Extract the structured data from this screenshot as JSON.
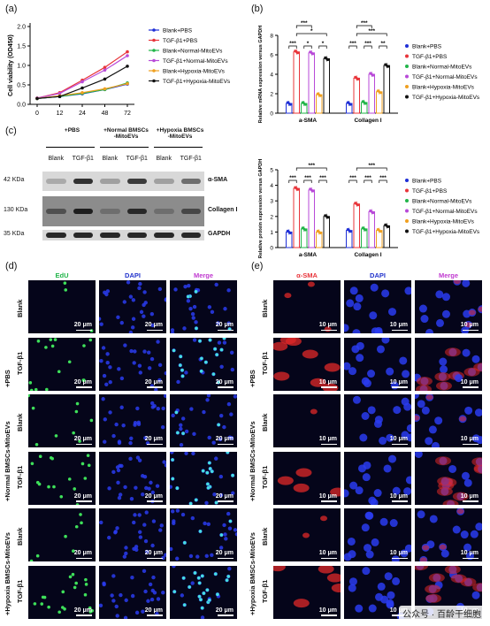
{
  "panels": {
    "a": "(a)",
    "b": "(b)",
    "c": "(c)",
    "d": "(d)",
    "e": "(e)"
  },
  "colors": {
    "Blank+PBS": "#1f2fd6",
    "TGF-β1+PBS": "#e8343a",
    "Blank+Normal-MitoEVs": "#22b54a",
    "TGF-β1+Normal-MitoEVs": "#b84ad8",
    "Blank+Hypoxia-MitoEVs": "#f0a020",
    "TGF-β1+Hypoxia-MitoEVs": "#111111"
  },
  "chart_data": [
    {
      "type": "line",
      "title": "",
      "xlabel": "",
      "ylabel": "Cell viability (OD450)",
      "x": [
        "0",
        "12",
        "24",
        "48",
        "72"
      ],
      "yticks": [
        "0.0",
        "0.5",
        "1.0",
        "1.5",
        "2.0"
      ],
      "ylim": [
        0,
        2.0
      ],
      "legend_position": "right",
      "series": [
        {
          "name": "Blank+PBS",
          "values": [
            0.15,
            0.2,
            0.27,
            0.38,
            0.52
          ]
        },
        {
          "name": "TGF-β1+PBS",
          "values": [
            0.16,
            0.3,
            0.62,
            0.95,
            1.35
          ]
        },
        {
          "name": "Blank+Normal-MitoEVs",
          "values": [
            0.15,
            0.2,
            0.28,
            0.38,
            0.55
          ]
        },
        {
          "name": "TGF-β1+Normal-MitoEVs",
          "values": [
            0.16,
            0.28,
            0.58,
            0.88,
            1.25
          ]
        },
        {
          "name": "Blank+Hypoxia-MitoEVs",
          "values": [
            0.15,
            0.22,
            0.3,
            0.4,
            0.53
          ]
        },
        {
          "name": "TGF-β1+Hypoxia-MitoEVs",
          "values": [
            0.15,
            0.2,
            0.42,
            0.65,
            0.98
          ]
        }
      ]
    },
    {
      "type": "bar",
      "title": "",
      "ylabel": "Relative mRNA expression versus GAPDH",
      "categories": [
        "a-SMA",
        "Collagen I"
      ],
      "yticks": [
        "0",
        "2",
        "4",
        "6",
        "8"
      ],
      "ylim": [
        0,
        8
      ],
      "legend_position": "right",
      "significance": [
        "***",
        "*",
        "*",
        "***",
        "***",
        "**",
        "*",
        "***",
        "***",
        "***"
      ],
      "series": [
        {
          "name": "Blank+PBS",
          "values": [
            1.0,
            1.0
          ]
        },
        {
          "name": "TGF-β1+PBS",
          "values": [
            6.3,
            3.6
          ]
        },
        {
          "name": "Blank+Normal-MitoEVs",
          "values": [
            1.0,
            1.1
          ]
        },
        {
          "name": "TGF-β1+Normal-MitoEVs",
          "values": [
            6.2,
            4.0
          ]
        },
        {
          "name": "Blank+Hypoxia-MitoEVs",
          "values": [
            1.9,
            2.2
          ]
        },
        {
          "name": "TGF-β1+Hypoxia-MitoEVs",
          "values": [
            5.6,
            4.9
          ]
        }
      ]
    },
    {
      "type": "bar",
      "title": "",
      "ylabel": "Relative protein expression versus GAPDH",
      "categories": [
        "a-SMA",
        "Collagen I"
      ],
      "yticks": [
        "0",
        "1",
        "2",
        "3",
        "4",
        "5"
      ],
      "ylim": [
        0,
        5
      ],
      "legend_position": "right",
      "significance": [
        "***",
        "***",
        "***",
        "***",
        "***",
        "***",
        "***",
        "***"
      ],
      "series": [
        {
          "name": "Blank+PBS",
          "values": [
            1.0,
            1.1
          ]
        },
        {
          "name": "TGF-β1+PBS",
          "values": [
            3.8,
            2.8
          ]
        },
        {
          "name": "Blank+Normal-MitoEVs",
          "values": [
            1.2,
            1.2
          ]
        },
        {
          "name": "TGF-β1+Normal-MitoEVs",
          "values": [
            3.7,
            2.3
          ]
        },
        {
          "name": "Blank+Hypoxia-MitoEVs",
          "values": [
            1.0,
            1.1
          ]
        },
        {
          "name": "TGF-β1+Hypoxia-MitoEVs",
          "values": [
            2.0,
            1.4
          ]
        }
      ]
    }
  ],
  "western": {
    "groups": [
      "+PBS",
      "+Normal BMSCs\n-MitoEVs",
      "+Hypoxia BMSCs\n-MitoEVs"
    ],
    "lanes": [
      "Blank",
      "TGF-β1",
      "Blank",
      "TGF-β1",
      "Blank",
      "TGF-β1"
    ],
    "rows": [
      {
        "kda": "42 KDa",
        "protein": "α-SMA",
        "intensity": [
          0.25,
          0.85,
          0.3,
          0.8,
          0.3,
          0.55
        ]
      },
      {
        "kda": "130 KDa",
        "protein": "Collagen I",
        "intensity": [
          0.7,
          0.95,
          0.55,
          0.9,
          0.55,
          0.75
        ]
      },
      {
        "kda": "35 KDa",
        "protein": "GAPDH",
        "intensity": [
          0.9,
          0.9,
          0.9,
          0.9,
          0.9,
          0.9
        ]
      }
    ]
  },
  "panel_d": {
    "columns": [
      "EdU",
      "DAPI",
      "Merge"
    ],
    "column_colors": [
      "#22b54a",
      "#2233cc",
      "#c03ad0"
    ],
    "scale": "20 μm",
    "groups": [
      "+PBS",
      "+Normal BMSCs-MitoEVs",
      "+Hypoxia BMSCs-MitoEVs"
    ],
    "rows": [
      "Blank",
      "TGF-β1",
      "Blank",
      "TGF-β1",
      "Blank",
      "TGF-β1"
    ]
  },
  "panel_e": {
    "columns": [
      "α-SMA",
      "DAPI",
      "Merge"
    ],
    "column_colors": [
      "#e8343a",
      "#2233cc",
      "#c03ad0"
    ],
    "scale": "10 μm",
    "groups": [
      "+PBS",
      "+Normal BMSCs-MitoEVs",
      "+Hypoxia BMSCs-MitoEVs"
    ],
    "rows": [
      "Blank",
      "TGF-β1",
      "Blank",
      "TGF-β1",
      "Blank",
      "TGF-β1"
    ]
  },
  "watermark": "公众号 · 百龄干细胞"
}
